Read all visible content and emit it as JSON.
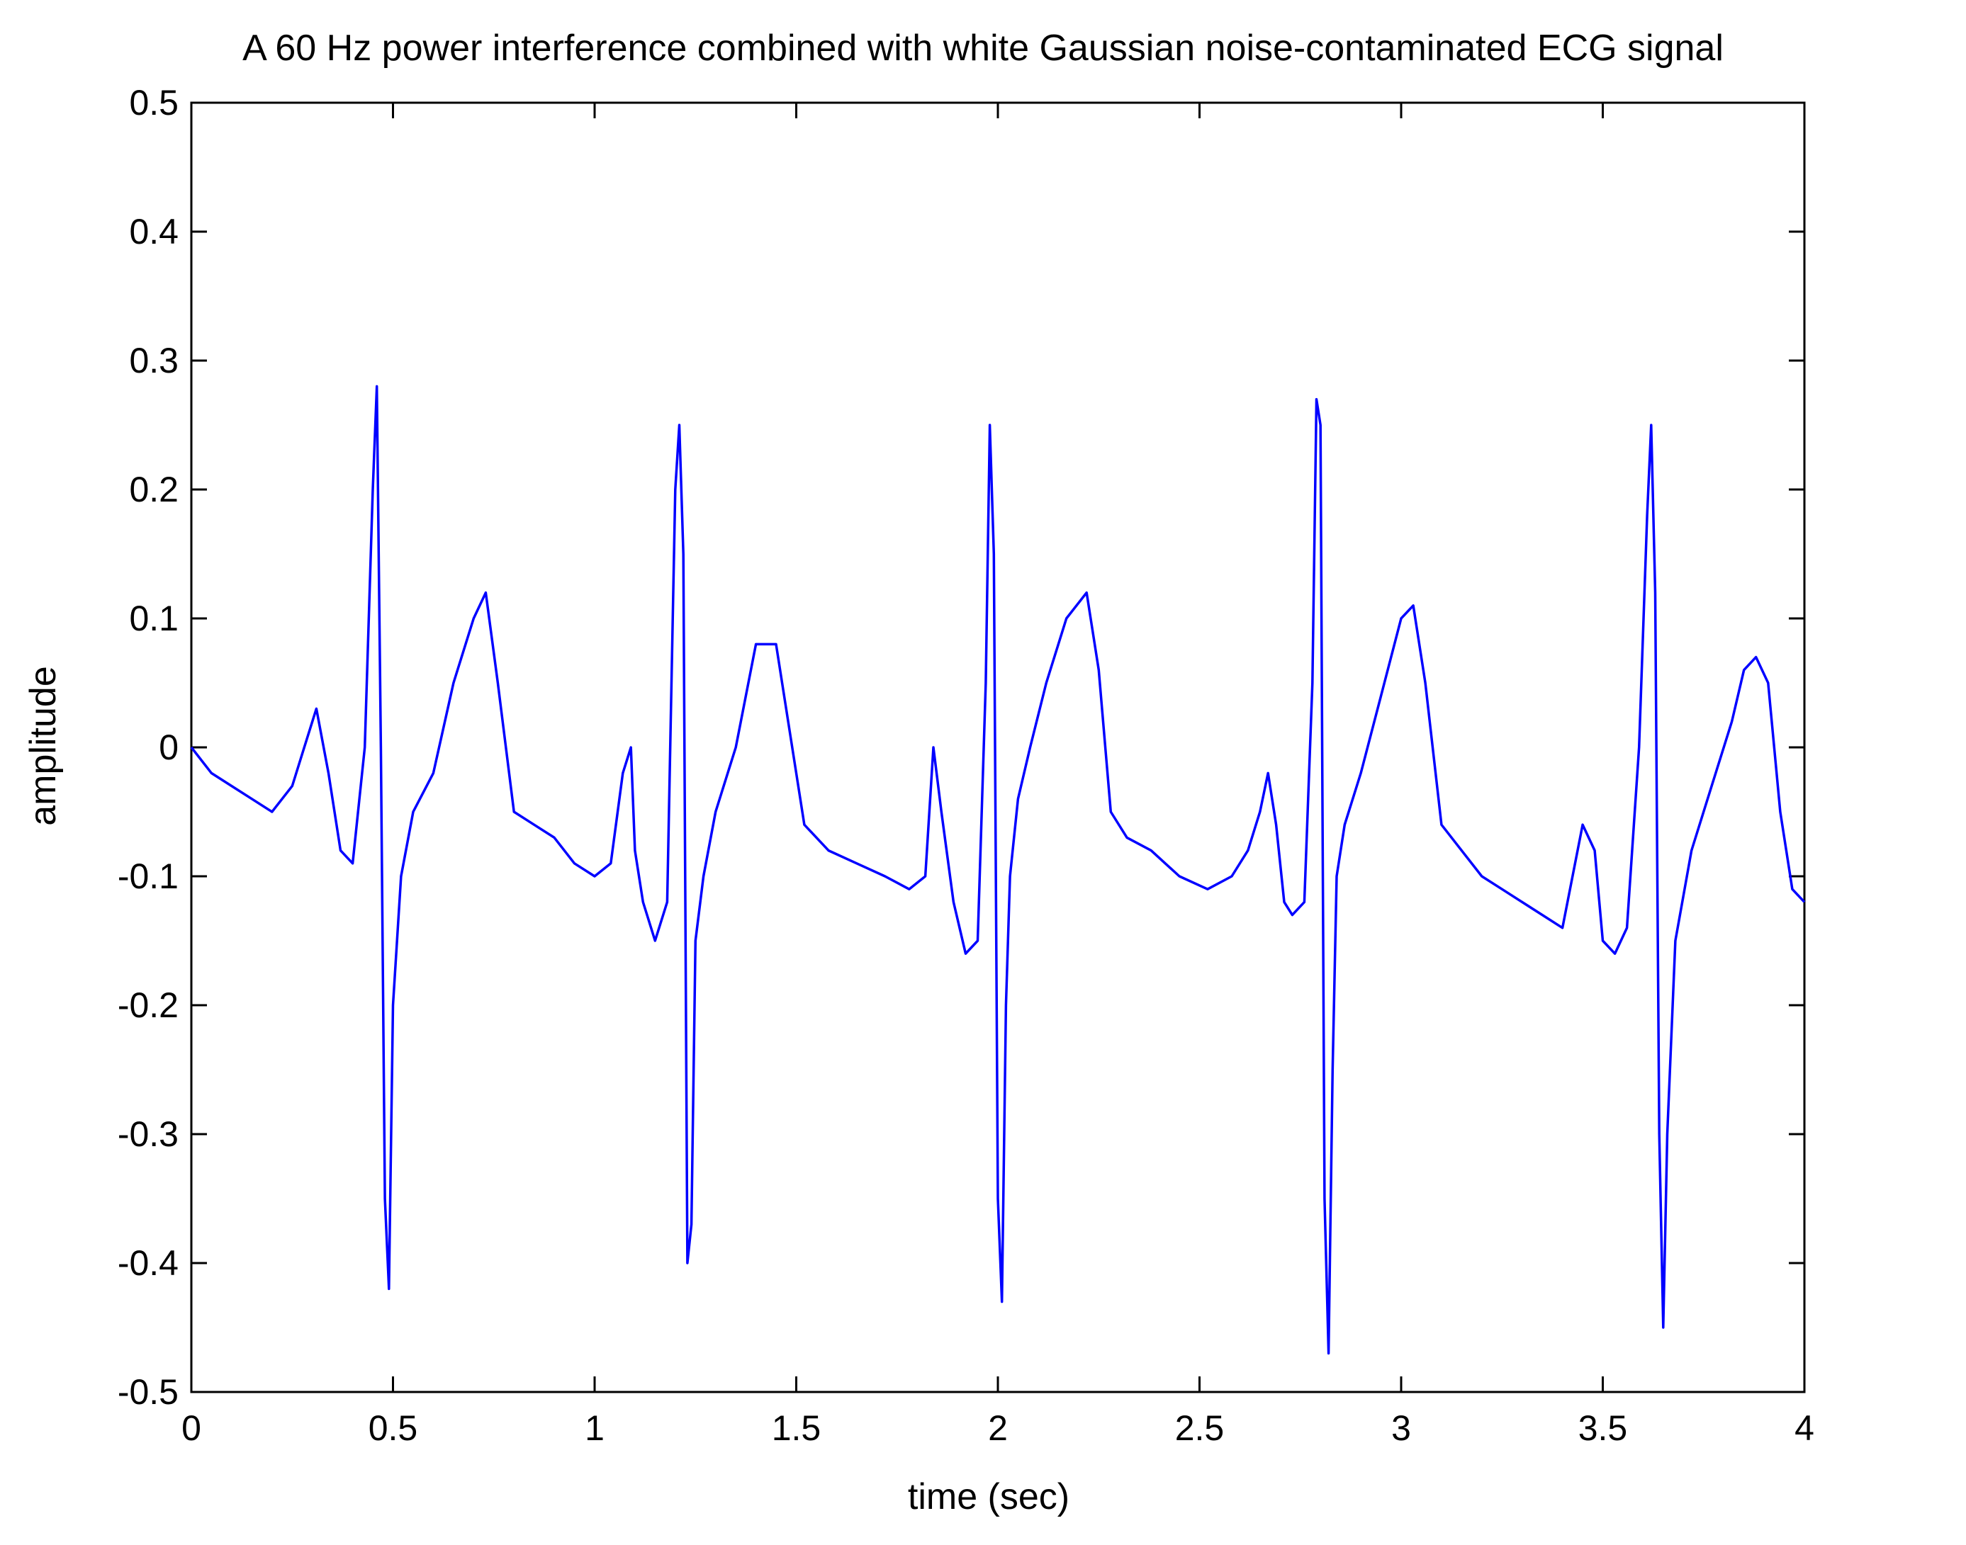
{
  "chart_data": {
    "type": "line",
    "title": "A 60 Hz power interference combined with white Gaussian noise-contaminated ECG signal",
    "xlabel": "time (sec)",
    "ylabel": "amplitude",
    "xlim": [
      0,
      4
    ],
    "ylim": [
      -0.5,
      0.5
    ],
    "grid": false,
    "x_ticks": [
      0,
      0.5,
      1,
      1.5,
      2,
      2.5,
      3,
      3.5,
      4
    ],
    "x_tick_labels": [
      "0",
      "0.5",
      "1",
      "1.5",
      "2",
      "2.5",
      "3",
      "3.5",
      "4"
    ],
    "y_ticks": [
      0.5,
      0.4,
      0.3,
      0.2,
      0.1,
      0,
      -0.1,
      -0.2,
      -0.3,
      -0.4,
      -0.5
    ],
    "y_tick_labels": [
      "0.5",
      "0.4",
      "0.3",
      "0.2",
      "0.1",
      "0",
      "-0.1",
      "-0.2",
      "-0.3",
      "-0.4",
      "-0.5"
    ],
    "series": [
      {
        "color": "#0000ff",
        "x": [
          0,
          0.05,
          0.1,
          0.15,
          0.2,
          0.25,
          0.28,
          0.31,
          0.34,
          0.37,
          0.4,
          0.43,
          0.45,
          0.46,
          0.47,
          0.48,
          0.49,
          0.5,
          0.52,
          0.55,
          0.6,
          0.65,
          0.7,
          0.73,
          0.76,
          0.8,
          0.85,
          0.9,
          0.95,
          1.0,
          1.04,
          1.07,
          1.09,
          1.1,
          1.12,
          1.15,
          1.18,
          1.2,
          1.21,
          1.22,
          1.23,
          1.24,
          1.25,
          1.27,
          1.3,
          1.35,
          1.4,
          1.45,
          1.48,
          1.52,
          1.58,
          1.65,
          1.72,
          1.78,
          1.82,
          1.84,
          1.86,
          1.89,
          1.92,
          1.95,
          1.97,
          1.98,
          1.99,
          2.0,
          2.01,
          2.02,
          2.03,
          2.05,
          2.08,
          2.12,
          2.17,
          2.22,
          2.25,
          2.28,
          2.32,
          2.38,
          2.45,
          2.52,
          2.58,
          2.62,
          2.65,
          2.67,
          2.69,
          2.71,
          2.73,
          2.76,
          2.78,
          2.79,
          2.8,
          2.81,
          2.82,
          2.83,
          2.84,
          2.86,
          2.9,
          2.95,
          3.0,
          3.03,
          3.06,
          3.1,
          3.15,
          3.2,
          3.25,
          3.3,
          3.35,
          3.4,
          3.45,
          3.48,
          3.5,
          3.53,
          3.56,
          3.59,
          3.61,
          3.62,
          3.63,
          3.64,
          3.65,
          3.66,
          3.68,
          3.72,
          3.77,
          3.82,
          3.85,
          3.88,
          3.91,
          3.94,
          3.97,
          4.0
        ],
        "y": [
          0.0,
          -0.02,
          -0.03,
          -0.04,
          -0.05,
          -0.03,
          0.0,
          0.03,
          -0.02,
          -0.08,
          -0.09,
          0.0,
          0.2,
          0.28,
          0.0,
          -0.35,
          -0.42,
          -0.2,
          -0.1,
          -0.05,
          -0.02,
          0.05,
          0.1,
          0.12,
          0.05,
          -0.05,
          -0.06,
          -0.07,
          -0.09,
          -0.1,
          -0.09,
          -0.02,
          0.0,
          -0.08,
          -0.12,
          -0.15,
          -0.12,
          0.2,
          0.25,
          0.15,
          -0.4,
          -0.37,
          -0.15,
          -0.1,
          -0.05,
          0.0,
          0.08,
          0.08,
          0.02,
          -0.06,
          -0.08,
          -0.09,
          -0.1,
          -0.11,
          -0.1,
          0.0,
          -0.05,
          -0.12,
          -0.16,
          -0.15,
          0.05,
          0.25,
          0.15,
          -0.35,
          -0.43,
          -0.2,
          -0.1,
          -0.04,
          0.0,
          0.05,
          0.1,
          0.12,
          0.06,
          -0.05,
          -0.07,
          -0.08,
          -0.1,
          -0.11,
          -0.1,
          -0.08,
          -0.05,
          -0.02,
          -0.06,
          -0.12,
          -0.13,
          -0.12,
          0.05,
          0.27,
          0.25,
          -0.35,
          -0.47,
          -0.25,
          -0.1,
          -0.06,
          -0.02,
          0.04,
          0.1,
          0.11,
          0.05,
          -0.06,
          -0.08,
          -0.1,
          -0.11,
          -0.12,
          -0.13,
          -0.14,
          -0.06,
          -0.08,
          -0.15,
          -0.16,
          -0.14,
          0.0,
          0.18,
          0.25,
          0.12,
          -0.3,
          -0.45,
          -0.3,
          -0.15,
          -0.08,
          -0.03,
          0.02,
          0.06,
          0.07,
          0.05,
          -0.05,
          -0.11,
          -0.12
        ]
      }
    ]
  }
}
